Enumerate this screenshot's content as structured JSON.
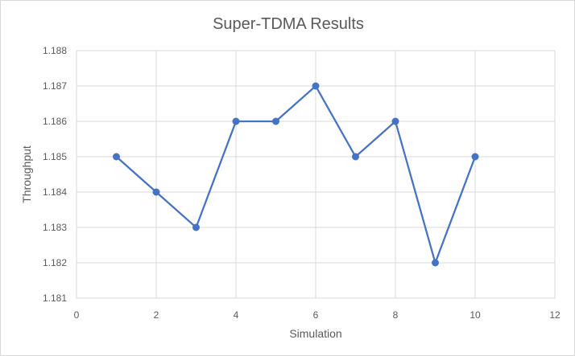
{
  "chart_data": {
    "type": "scatter",
    "title": "Super-TDMA Results",
    "xlabel": "Simulation",
    "ylabel": "Throughput",
    "xlim": [
      0,
      12
    ],
    "ylim": [
      1.181,
      1.188
    ],
    "x_ticks": [
      "0",
      "2",
      "4",
      "6",
      "8",
      "10",
      "12"
    ],
    "y_ticks": [
      "1.181",
      "1.182",
      "1.183",
      "1.184",
      "1.185",
      "1.186",
      "1.187",
      "1.188"
    ],
    "grid": true,
    "legend": "none",
    "series": [
      {
        "x": [
          1,
          2,
          3,
          4,
          5,
          6,
          7,
          8,
          9,
          10
        ],
        "y": [
          1.185,
          1.184,
          1.183,
          1.186,
          1.186,
          1.187,
          1.185,
          1.186,
          1.182,
          1.185
        ],
        "color": "#4472c4",
        "markers": true,
        "line": true
      }
    ]
  }
}
